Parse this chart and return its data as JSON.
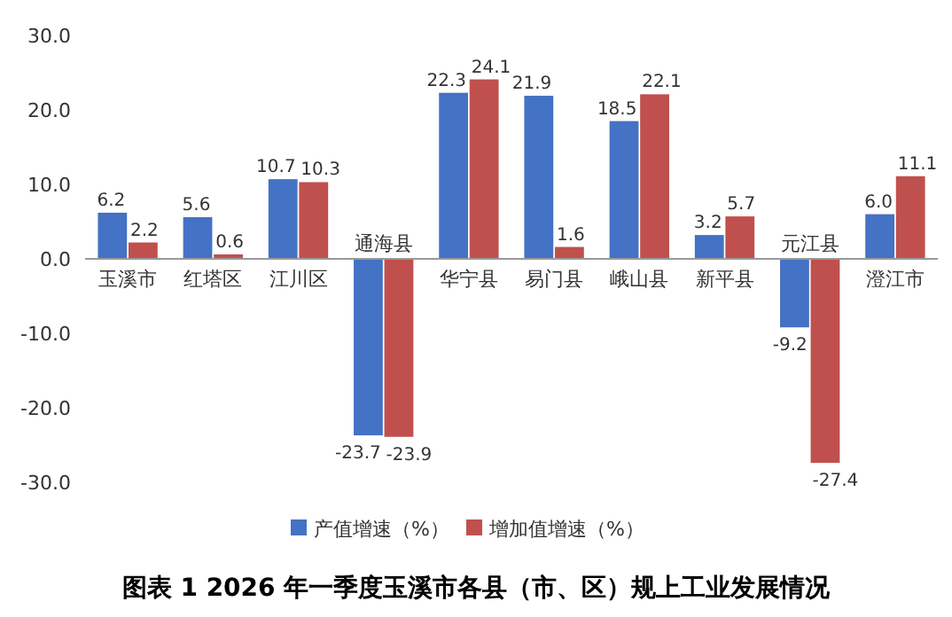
{
  "chart_data": {
    "type": "bar",
    "title": "图表 1   2026 年一季度玉溪市各县（市、区）规上工业发展情况",
    "categories": [
      "玉溪市",
      "红塔区",
      "江川区",
      "通海县",
      "华宁县",
      "易门县",
      "峨山县",
      "新平县",
      "元江县",
      "澄江市"
    ],
    "series": [
      {
        "name": "产值增速（%）",
        "color": "#4472c4",
        "values": [
          6.2,
          5.6,
          10.7,
          -23.7,
          22.3,
          21.9,
          18.5,
          3.2,
          -9.2,
          6.0
        ],
        "value_labels": [
          "6.2",
          "5.6",
          "10.7",
          "-23.7",
          "22.3",
          "21.9",
          "18.5",
          "3.2",
          "-9.2",
          "6.0"
        ]
      },
      {
        "name": "增加值增速（%）",
        "color": "#c0504d",
        "values": [
          2.2,
          0.6,
          10.3,
          -23.9,
          24.1,
          1.6,
          22.1,
          5.7,
          -27.4,
          11.1
        ],
        "value_labels": [
          "2.2",
          "0.6",
          "10.3",
          "-23.9",
          "24.1",
          "1.6",
          "22.1",
          "5.7",
          "-27.4",
          "11.1"
        ]
      }
    ],
    "ylim": [
      -30,
      30
    ],
    "yticks": [
      {
        "value": 30,
        "label": "30.0"
      },
      {
        "value": 20,
        "label": "20.0"
      },
      {
        "value": 10,
        "label": "10.0"
      },
      {
        "value": 0,
        "label": "0.0"
      },
      {
        "value": -10,
        "label": "-10.0"
      },
      {
        "value": -20,
        "label": "-20.0"
      },
      {
        "value": -30,
        "label": "-30.0"
      }
    ],
    "legend": "bottom",
    "grid": false
  }
}
